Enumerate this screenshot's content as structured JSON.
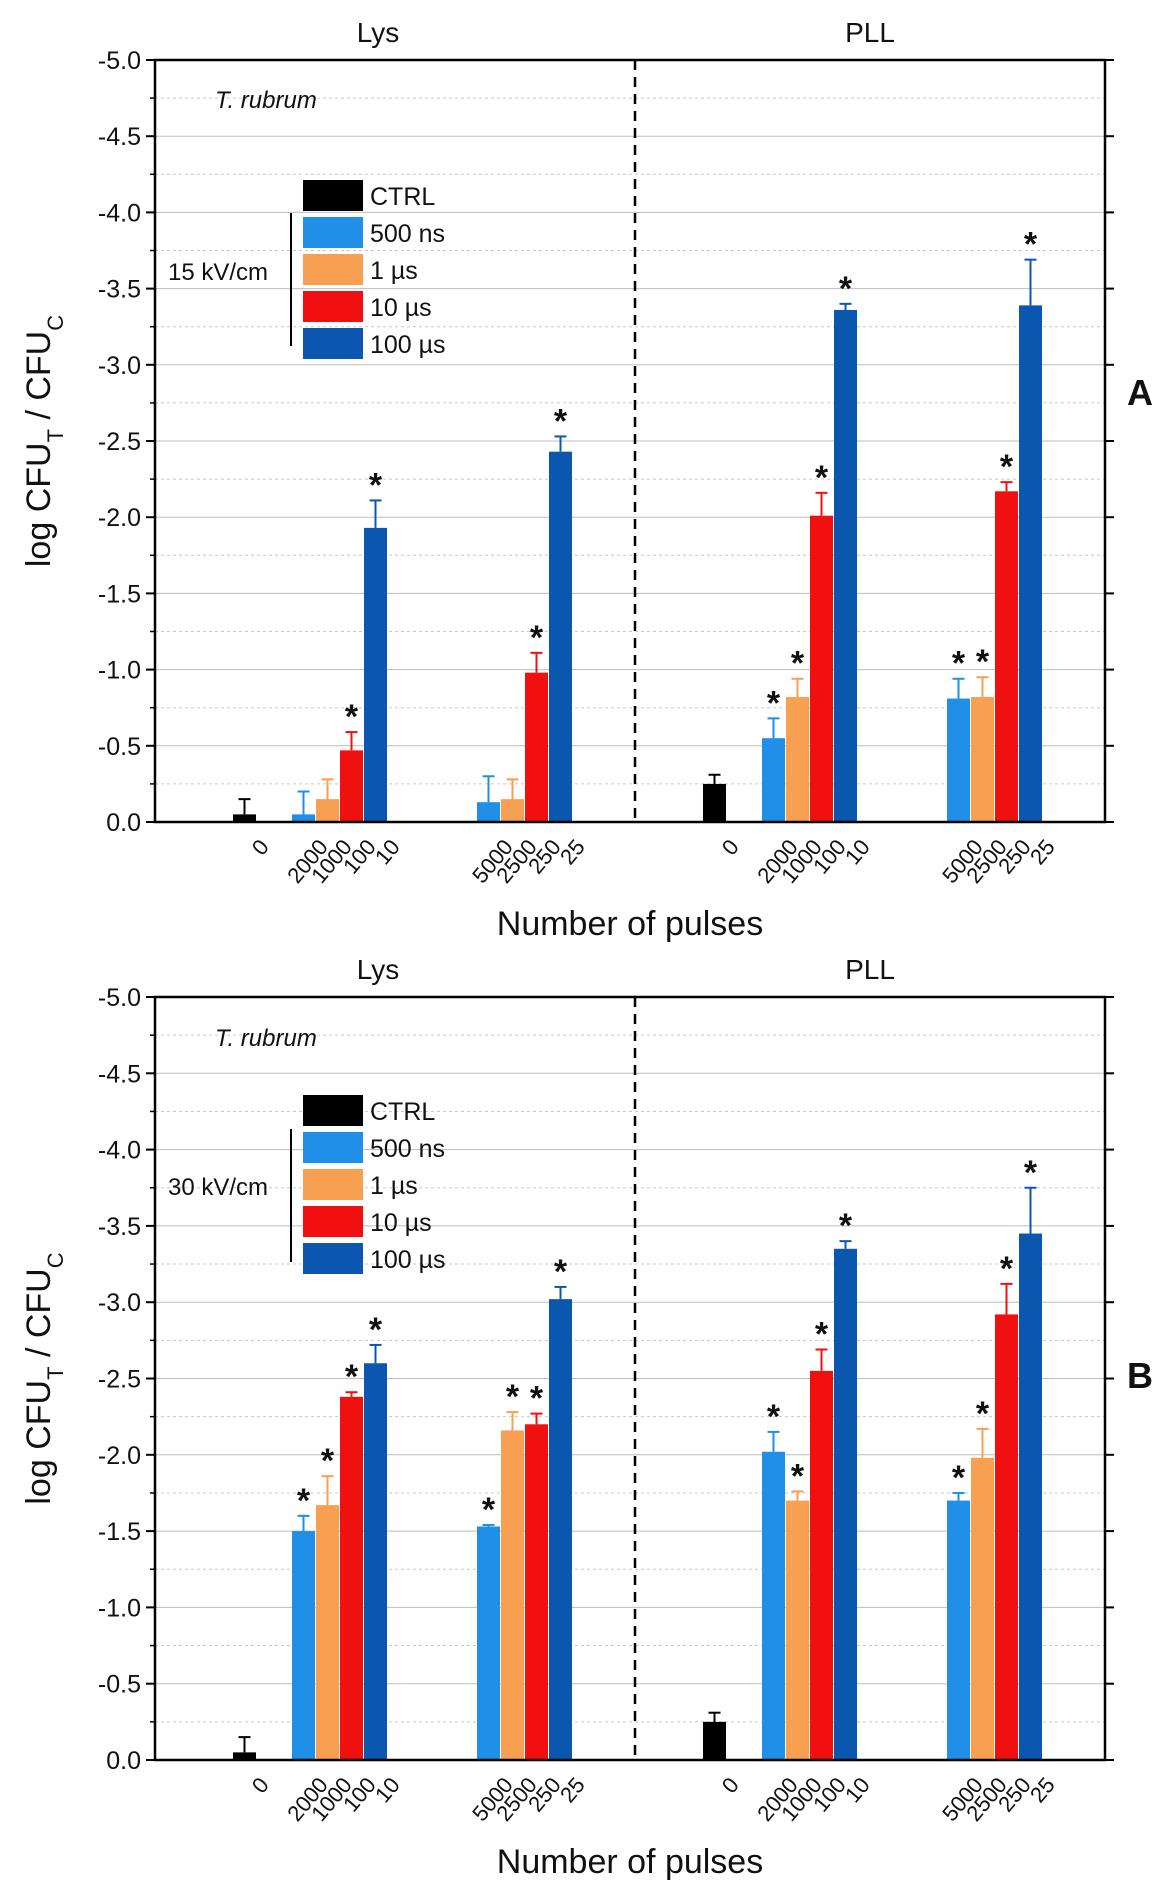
{
  "chart_data": [
    {
      "type": "bar",
      "panel_label": "A",
      "title": "",
      "xlabel": "Number of pulses",
      "ylabel": "log CFU_T / CFU_C",
      "ylabel_parts": {
        "main": "log CFU",
        "sub_t": "T",
        "mid": " / CFU",
        "sub_c": "C"
      },
      "ylim": [
        0.0,
        -5.0
      ],
      "yticks": [
        "0.0",
        "-0.5",
        "-1.0",
        "-1.5",
        "-2.0",
        "-2.5",
        "-3.0",
        "-3.5",
        "-4.0",
        "-4.5",
        "-5.0"
      ],
      "ytick_values": [
        0,
        -0.5,
        -1,
        -1.5,
        -2,
        -2.5,
        -3,
        -3.5,
        -4,
        -4.5,
        -5
      ],
      "organism": "T. rubrum",
      "field_label": "15 kV/cm",
      "section_labels": [
        "Lys",
        "PLL"
      ],
      "legend": [
        {
          "name": "CTRL",
          "color": "#000000"
        },
        {
          "name": "500 ns",
          "color": "#1f8fe8"
        },
        {
          "name": "1 µs",
          "color": "#f7a052"
        },
        {
          "name": "10 µs",
          "color": "#f01010"
        },
        {
          "name": "100 µs",
          "color": "#0b57b0"
        }
      ],
      "groups": [
        {
          "section": "Lys",
          "bars": [
            {
              "series": "CTRL",
              "label": "0",
              "value": -0.05,
              "error": 0.1,
              "sig": false
            }
          ]
        },
        {
          "section": "Lys",
          "bars": [
            {
              "series": "500 ns",
              "label": "2000",
              "value": -0.05,
              "error": 0.15,
              "sig": false
            },
            {
              "series": "1 µs",
              "label": "1000",
              "value": -0.15,
              "error": 0.13,
              "sig": false
            },
            {
              "series": "10 µs",
              "label": "100",
              "value": -0.47,
              "error": 0.12,
              "sig": true
            },
            {
              "series": "100 µs",
              "label": "10",
              "value": -1.93,
              "error": 0.18,
              "sig": true
            }
          ]
        },
        {
          "section": "Lys",
          "bars": [
            {
              "series": "500 ns",
              "label": "5000",
              "value": -0.13,
              "error": 0.17,
              "sig": false
            },
            {
              "series": "1 µs",
              "label": "2500",
              "value": -0.15,
              "error": 0.13,
              "sig": false
            },
            {
              "series": "10 µs",
              "label": "250",
              "value": -0.98,
              "error": 0.13,
              "sig": true
            },
            {
              "series": "100 µs",
              "label": "25",
              "value": -2.43,
              "error": 0.1,
              "sig": true
            }
          ]
        },
        {
          "section": "PLL",
          "bars": [
            {
              "series": "CTRL",
              "label": "0",
              "value": -0.25,
              "error": 0.06,
              "sig": false
            }
          ]
        },
        {
          "section": "PLL",
          "bars": [
            {
              "series": "500 ns",
              "label": "2000",
              "value": -0.55,
              "error": 0.13,
              "sig": true
            },
            {
              "series": "1 µs",
              "label": "1000",
              "value": -0.82,
              "error": 0.12,
              "sig": true
            },
            {
              "series": "10 µs",
              "label": "100",
              "value": -2.01,
              "error": 0.15,
              "sig": true
            },
            {
              "series": "100 µs",
              "label": "10",
              "value": -3.36,
              "error": 0.04,
              "sig": true
            }
          ]
        },
        {
          "section": "PLL",
          "bars": [
            {
              "series": "500 ns",
              "label": "5000",
              "value": -0.81,
              "error": 0.13,
              "sig": true
            },
            {
              "series": "1 µs",
              "label": "2500",
              "value": -0.82,
              "error": 0.13,
              "sig": true
            },
            {
              "series": "10 µs",
              "label": "250",
              "value": -2.17,
              "error": 0.06,
              "sig": true
            },
            {
              "series": "100 µs",
              "label": "25",
              "value": -3.39,
              "error": 0.3,
              "sig": true
            }
          ]
        }
      ]
    },
    {
      "type": "bar",
      "panel_label": "B",
      "title": "",
      "xlabel": "Number of pulses",
      "ylabel": "log CFU_T / CFU_C",
      "ylabel_parts": {
        "main": "log CFU",
        "sub_t": "T",
        "mid": " / CFU",
        "sub_c": "C"
      },
      "ylim": [
        0.0,
        -5.0
      ],
      "yticks": [
        "0.0",
        "-0.5",
        "-1.0",
        "-1.5",
        "-2.0",
        "-2.5",
        "-3.0",
        "-3.5",
        "-4.0",
        "-4.5",
        "-5.0"
      ],
      "ytick_values": [
        0,
        -0.5,
        -1,
        -1.5,
        -2,
        -2.5,
        -3,
        -3.5,
        -4,
        -4.5,
        -5
      ],
      "organism": "T. rubrum",
      "field_label": "30 kV/cm",
      "section_labels": [
        "Lys",
        "PLL"
      ],
      "legend": [
        {
          "name": "CTRL",
          "color": "#000000"
        },
        {
          "name": "500 ns",
          "color": "#1f8fe8"
        },
        {
          "name": "1 µs",
          "color": "#f7a052"
        },
        {
          "name": "10 µs",
          "color": "#f01010"
        },
        {
          "name": "100 µs",
          "color": "#0b57b0"
        }
      ],
      "groups": [
        {
          "section": "Lys",
          "bars": [
            {
              "series": "CTRL",
              "label": "0",
              "value": -0.05,
              "error": 0.1,
              "sig": false
            }
          ]
        },
        {
          "section": "Lys",
          "bars": [
            {
              "series": "500 ns",
              "label": "2000",
              "value": -1.5,
              "error": 0.1,
              "sig": true
            },
            {
              "series": "1 µs",
              "label": "1000",
              "value": -1.67,
              "error": 0.19,
              "sig": true
            },
            {
              "series": "10 µs",
              "label": "100",
              "value": -2.38,
              "error": 0.03,
              "sig": true
            },
            {
              "series": "100 µs",
              "label": "10",
              "value": -2.6,
              "error": 0.12,
              "sig": true
            }
          ]
        },
        {
          "section": "Lys",
          "bars": [
            {
              "series": "500 ns",
              "label": "5000",
              "value": -1.53,
              "error": 0.01,
              "sig": true
            },
            {
              "series": "1 µs",
              "label": "2500",
              "value": -2.16,
              "error": 0.12,
              "sig": true
            },
            {
              "series": "10 µs",
              "label": "250",
              "value": -2.2,
              "error": 0.07,
              "sig": true
            },
            {
              "series": "100 µs",
              "label": "25",
              "value": -3.02,
              "error": 0.08,
              "sig": true
            }
          ]
        },
        {
          "section": "PLL",
          "bars": [
            {
              "series": "CTRL",
              "label": "0",
              "value": -0.25,
              "error": 0.06,
              "sig": false
            }
          ]
        },
        {
          "section": "PLL",
          "bars": [
            {
              "series": "500 ns",
              "label": "2000",
              "value": -2.02,
              "error": 0.13,
              "sig": true
            },
            {
              "series": "1 µs",
              "label": "1000",
              "value": -1.7,
              "error": 0.06,
              "sig": true
            },
            {
              "series": "10 µs",
              "label": "100",
              "value": -2.55,
              "error": 0.14,
              "sig": true
            },
            {
              "series": "100 µs",
              "label": "10",
              "value": -3.35,
              "error": 0.05,
              "sig": true
            }
          ]
        },
        {
          "section": "PLL",
          "bars": [
            {
              "series": "500 ns",
              "label": "5000",
              "value": -1.7,
              "error": 0.05,
              "sig": true
            },
            {
              "series": "1 µs",
              "label": "2500",
              "value": -1.98,
              "error": 0.19,
              "sig": true
            },
            {
              "series": "10 µs",
              "label": "250",
              "value": -2.92,
              "error": 0.2,
              "sig": true
            },
            {
              "series": "100 µs",
              "label": "25",
              "value": -3.45,
              "error": 0.3,
              "sig": true
            }
          ]
        }
      ]
    }
  ]
}
